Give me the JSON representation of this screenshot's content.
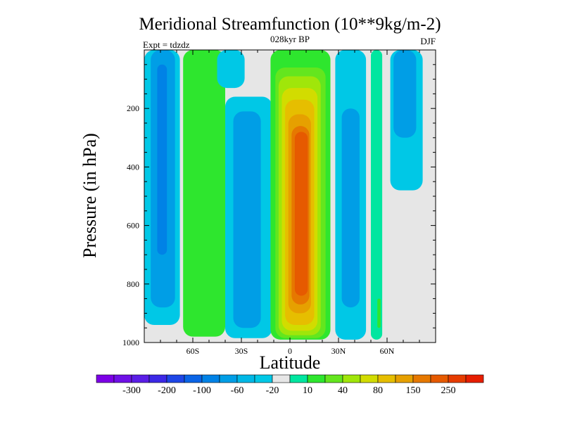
{
  "chart_data": {
    "type": "heatmap",
    "title": "Meridional Streamfunction (10**9kg/m-2)",
    "subtitle": "028kyr BP",
    "left_label": "Expt = tdzdz",
    "right_label": "DJF",
    "xlabel": "Latitude",
    "ylabel": "Pressure (in hPa)",
    "xlim": [
      -90,
      90
    ],
    "ylim": [
      1000,
      0
    ],
    "x_ticks": [
      {
        "value": -60,
        "label": "60S"
      },
      {
        "value": -30,
        "label": "30S"
      },
      {
        "value": 0,
        "label": "0"
      },
      {
        "value": 30,
        "label": "30N"
      },
      {
        "value": 60,
        "label": "60N"
      }
    ],
    "y_ticks": [
      {
        "value": 200,
        "label": "200"
      },
      {
        "value": 400,
        "label": "400"
      },
      {
        "value": 600,
        "label": "600"
      },
      {
        "value": 800,
        "label": "800"
      },
      {
        "value": 1000,
        "label": "1000"
      }
    ],
    "colorbar": {
      "colors": [
        "#7c00e6",
        "#6e10e6",
        "#5a1ee6",
        "#3c28e6",
        "#1e46e6",
        "#0a64e6",
        "#0082e6",
        "#009ee6",
        "#00b8e6",
        "#00c8e6",
        "#e6e6e6",
        "#00e6a0",
        "#2ee62e",
        "#64e61e",
        "#a0e60a",
        "#d2dc00",
        "#e6be00",
        "#e6a000",
        "#e67800",
        "#e65a00",
        "#e63c00",
        "#e61e00"
      ],
      "labels": [
        {
          "after": 1,
          "text": "-300"
        },
        {
          "after": 3,
          "text": "-200"
        },
        {
          "after": 5,
          "text": "-100"
        },
        {
          "after": 7,
          "text": "-60"
        },
        {
          "after": 9,
          "text": "-20"
        },
        {
          "after": 11,
          "text": "10"
        },
        {
          "after": 13,
          "text": "40"
        },
        {
          "after": 15,
          "text": "80"
        },
        {
          "after": 17,
          "text": "150"
        },
        {
          "after": 19,
          "text": "250"
        }
      ]
    },
    "cells": [
      {
        "name": "sh-polar-outer-cell",
        "x0": -90,
        "x1": -68,
        "p0": 0,
        "p1": 940,
        "color": "#00c8e6"
      },
      {
        "name": "sh-polar-mid-cell",
        "x0": -86,
        "x1": -71,
        "p0": 0,
        "p1": 880,
        "color": "#009ee6"
      },
      {
        "name": "sh-polar-core-cell",
        "x0": -82,
        "x1": -76,
        "p0": 50,
        "p1": 700,
        "color": "#0082e6"
      },
      {
        "name": "sh-ferrel-outer-cell",
        "x0": -66,
        "x1": -40,
        "p0": 0,
        "p1": 980,
        "color": "#2ee62e"
      },
      {
        "name": "sh-subpolar-cell",
        "x0": -45,
        "x1": -28,
        "p0": 0,
        "p1": 130,
        "color": "#00c8e6"
      },
      {
        "name": "sh-subtropical-outer-cell",
        "x0": -40,
        "x1": -11,
        "p0": 160,
        "p1": 985,
        "color": "#00c8e6"
      },
      {
        "name": "sh-subtropical-core-cell",
        "x0": -35,
        "x1": -18,
        "p0": 210,
        "p1": 950,
        "color": "#009ee6"
      },
      {
        "name": "hadley-outer-cell",
        "x0": -12,
        "x1": 25,
        "p0": 0,
        "p1": 990,
        "color": "#2ee62e"
      },
      {
        "name": "hadley-cell-level-2",
        "x0": -9,
        "x1": 22,
        "p0": 60,
        "p1": 985,
        "color": "#64e61e"
      },
      {
        "name": "hadley-cell-level-3",
        "x0": -7,
        "x1": 19,
        "p0": 90,
        "p1": 975,
        "color": "#a0e60a"
      },
      {
        "name": "hadley-cell-level-4",
        "x0": -5,
        "x1": 17,
        "p0": 130,
        "p1": 960,
        "color": "#d2dc00"
      },
      {
        "name": "hadley-cell-level-5",
        "x0": -3,
        "x1": 15,
        "p0": 170,
        "p1": 940,
        "color": "#e6be00"
      },
      {
        "name": "hadley-cell-level-6",
        "x0": -1,
        "x1": 13,
        "p0": 220,
        "p1": 900,
        "color": "#e6a000"
      },
      {
        "name": "hadley-cell-level-7",
        "x0": 1,
        "x1": 12,
        "p0": 260,
        "p1": 870,
        "color": "#e67800"
      },
      {
        "name": "hadley-cell-core",
        "x0": 3,
        "x1": 11,
        "p0": 280,
        "p1": 840,
        "color": "#e65a00"
      },
      {
        "name": "nh-subtropical-outer-cell",
        "x0": 28,
        "x1": 47,
        "p0": 0,
        "p1": 990,
        "color": "#00c8e6"
      },
      {
        "name": "nh-subtropical-core-cell",
        "x0": 32,
        "x1": 43,
        "p0": 200,
        "p1": 880,
        "color": "#009ee6"
      },
      {
        "name": "nh-ferrel-outer-cell",
        "x0": 50,
        "x1": 57,
        "p0": 0,
        "p1": 990,
        "color": "#00e6a0"
      },
      {
        "name": "nh-ferrel-core-cell",
        "x0": 54,
        "x1": 56,
        "p0": 850,
        "p1": 950,
        "color": "#2ee62e"
      },
      {
        "name": "nh-polar-outer-cell",
        "x0": 62,
        "x1": 82,
        "p0": 0,
        "p1": 480,
        "color": "#00c8e6"
      },
      {
        "name": "nh-polar-core-cell",
        "x0": 64,
        "x1": 78,
        "p0": 0,
        "p1": 300,
        "color": "#009ee6"
      }
    ]
  }
}
